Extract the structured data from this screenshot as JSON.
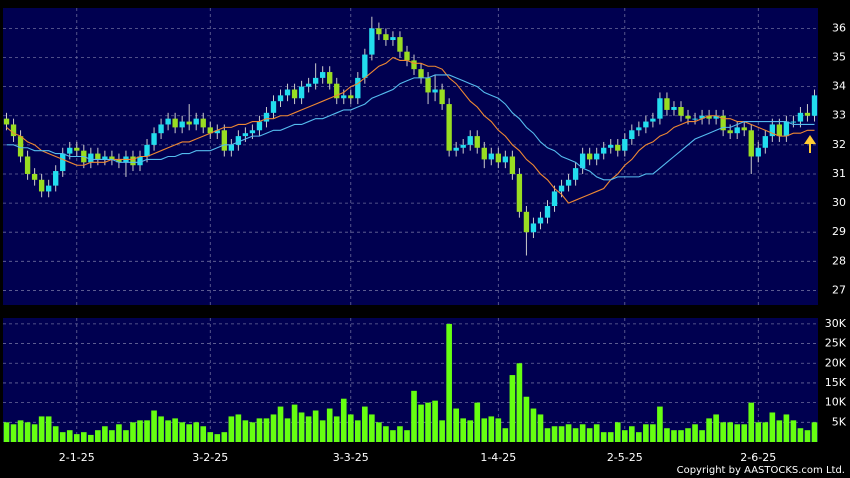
{
  "chart_data": [
    {
      "type": "candlestick",
      "categories": [
        null,
        null,
        null,
        null,
        null,
        null,
        null,
        null,
        null,
        null,
        "2-1-25",
        null,
        null,
        null,
        null,
        null,
        null,
        null,
        null,
        null,
        null,
        null,
        null,
        null,
        null,
        null,
        null,
        null,
        null,
        "3-2-25",
        null,
        null,
        null,
        null,
        null,
        null,
        null,
        null,
        null,
        null,
        null,
        null,
        null,
        null,
        null,
        null,
        null,
        null,
        null,
        "3-3-25",
        null,
        null,
        null,
        null,
        null,
        null,
        null,
        null,
        null,
        null,
        null,
        null,
        null,
        null,
        null,
        null,
        null,
        null,
        null,
        null,
        "1-4-25",
        null,
        null,
        null,
        null,
        null,
        null,
        null,
        null,
        null,
        null,
        null,
        null,
        null,
        null,
        null,
        null,
        null,
        "2-5-25",
        null,
        null,
        null,
        null,
        null,
        null,
        null,
        null,
        null,
        null,
        null,
        null,
        null,
        null,
        null,
        null,
        null,
        null,
        "2-6-25",
        null,
        null,
        null,
        null,
        null,
        null,
        null,
        null
      ],
      "open": [
        32.9,
        32.7,
        32.3,
        31.6,
        31.0,
        30.8,
        30.4,
        30.6,
        31.1,
        31.7,
        31.9,
        31.8,
        31.4,
        31.7,
        31.5,
        31.6,
        31.5,
        31.4,
        31.6,
        31.3,
        31.6,
        32.0,
        32.4,
        32.7,
        32.9,
        32.6,
        32.8,
        32.7,
        32.9,
        32.6,
        32.4,
        32.5,
        31.8,
        32.0,
        32.3,
        32.4,
        32.5,
        32.8,
        33.1,
        33.5,
        33.7,
        33.9,
        33.6,
        34.0,
        34.1,
        34.3,
        34.5,
        34.1,
        33.6,
        33.7,
        33.6,
        34.3,
        35.1,
        36.0,
        35.8,
        35.6,
        35.7,
        35.2,
        34.9,
        34.6,
        34.3,
        33.8,
        33.9,
        33.4,
        31.8,
        31.9,
        32.0,
        32.3,
        31.9,
        31.5,
        31.7,
        31.4,
        31.6,
        31.0,
        29.7,
        29.0,
        29.3,
        29.5,
        29.9,
        30.4,
        30.6,
        30.8,
        31.2,
        31.7,
        31.5,
        31.7,
        31.9,
        32.0,
        31.8,
        32.2,
        32.5,
        32.6,
        32.8,
        32.9,
        33.6,
        33.2,
        33.3,
        33.0,
        32.9,
        32.9,
        33.0,
        32.9,
        33.0,
        32.5,
        32.4,
        32.6,
        32.5,
        31.6,
        31.9,
        32.3,
        32.7,
        32.3,
        32.8,
        32.8,
        33.1,
        33.0
      ],
      "high": [
        33.1,
        32.9,
        32.5,
        31.8,
        31.2,
        31.0,
        30.8,
        31.3,
        31.9,
        32.1,
        32.1,
        32.0,
        31.9,
        31.9,
        31.8,
        31.8,
        31.7,
        31.8,
        31.8,
        31.8,
        32.2,
        32.6,
        32.9,
        33.1,
        33.1,
        33.0,
        33.4,
        33.1,
        33.1,
        32.8,
        32.7,
        32.7,
        32.2,
        32.5,
        32.6,
        32.7,
        33.0,
        33.3,
        33.7,
        33.9,
        34.1,
        34.1,
        34.2,
        34.3,
        34.8,
        34.7,
        34.7,
        34.3,
        33.9,
        33.9,
        34.5,
        35.3,
        36.4,
        36.2,
        36.0,
        35.9,
        35.9,
        35.4,
        35.1,
        34.8,
        34.5,
        34.4,
        34.1,
        33.6,
        32.1,
        32.2,
        32.5,
        32.5,
        32.1,
        31.9,
        31.9,
        31.8,
        31.8,
        31.2,
        29.9,
        29.5,
        29.7,
        30.1,
        30.6,
        30.8,
        31.0,
        31.4,
        31.9,
        31.9,
        31.9,
        32.1,
        32.2,
        32.2,
        32.4,
        32.7,
        32.8,
        33.0,
        33.1,
        33.8,
        33.8,
        33.5,
        33.5,
        33.2,
        33.1,
        33.2,
        33.2,
        33.2,
        33.2,
        32.7,
        32.8,
        32.8,
        32.7,
        32.1,
        32.5,
        32.9,
        32.9,
        33.0,
        33.0,
        33.3,
        33.4,
        33.9
      ],
      "low": [
        32.5,
        32.1,
        31.4,
        30.8,
        30.6,
        30.2,
        30.2,
        30.4,
        30.9,
        31.5,
        31.6,
        31.2,
        31.2,
        31.3,
        31.3,
        31.3,
        31.2,
        30.9,
        31.1,
        31.1,
        31.4,
        31.8,
        32.2,
        32.5,
        32.4,
        32.4,
        32.5,
        32.5,
        32.4,
        32.2,
        32.2,
        31.6,
        31.6,
        31.8,
        32.1,
        32.2,
        32.3,
        32.6,
        32.9,
        33.3,
        33.5,
        33.4,
        33.4,
        33.8,
        33.9,
        34.1,
        33.9,
        33.4,
        33.4,
        33.4,
        33.4,
        34.1,
        34.9,
        35.6,
        35.4,
        35.4,
        35.0,
        34.7,
        34.4,
        34.1,
        33.4,
        33.5,
        33.2,
        31.6,
        31.6,
        31.7,
        31.8,
        31.7,
        31.2,
        31.3,
        31.2,
        31.2,
        30.8,
        29.5,
        28.2,
        28.8,
        29.1,
        29.3,
        29.7,
        30.2,
        30.4,
        30.6,
        31.0,
        31.3,
        31.3,
        31.5,
        31.7,
        31.6,
        31.6,
        32.0,
        32.3,
        32.4,
        32.6,
        32.7,
        33.0,
        33.0,
        32.8,
        32.7,
        32.7,
        32.7,
        32.7,
        32.7,
        32.3,
        32.2,
        32.2,
        32.3,
        31.0,
        31.4,
        31.7,
        32.1,
        32.1,
        32.1,
        32.6,
        32.6,
        32.8,
        32.8
      ],
      "close": [
        32.7,
        32.3,
        31.6,
        31.0,
        30.8,
        30.4,
        30.6,
        31.1,
        31.7,
        31.9,
        31.8,
        31.4,
        31.7,
        31.5,
        31.6,
        31.5,
        31.4,
        31.6,
        31.3,
        31.6,
        32.0,
        32.4,
        32.7,
        32.9,
        32.6,
        32.8,
        32.7,
        32.9,
        32.6,
        32.4,
        32.5,
        31.8,
        32.0,
        32.3,
        32.4,
        32.5,
        32.8,
        33.1,
        33.5,
        33.7,
        33.9,
        33.6,
        34.0,
        34.1,
        34.3,
        34.5,
        34.1,
        33.6,
        33.7,
        33.6,
        34.3,
        35.1,
        36.0,
        35.8,
        35.6,
        35.7,
        35.2,
        34.9,
        34.6,
        34.3,
        33.8,
        33.9,
        33.4,
        31.8,
        31.9,
        32.0,
        32.3,
        31.9,
        31.5,
        31.7,
        31.4,
        31.6,
        31.0,
        29.7,
        29.0,
        29.3,
        29.5,
        29.9,
        30.4,
        30.6,
        30.8,
        31.2,
        31.7,
        31.5,
        31.7,
        31.9,
        32.0,
        31.8,
        32.2,
        32.5,
        32.6,
        32.8,
        32.9,
        33.6,
        33.2,
        33.3,
        33.0,
        32.9,
        32.9,
        33.0,
        32.9,
        33.0,
        32.5,
        32.4,
        32.6,
        32.5,
        31.6,
        31.9,
        32.3,
        32.7,
        32.3,
        32.8,
        32.8,
        33.1,
        33.0,
        33.7
      ],
      "up_color": "#22ddee",
      "down_color": "#99dd22",
      "series": [
        {
          "color": "#ee8833",
          "values": [
            32.6,
            32.4,
            32.3,
            32.1,
            32.0,
            31.8,
            31.7,
            31.6,
            31.5,
            31.4,
            31.3,
            31.3,
            31.4,
            31.4,
            31.4,
            31.5,
            31.5,
            31.5,
            31.5,
            31.6,
            31.6,
            31.7,
            31.8,
            31.9,
            32.0,
            32.1,
            32.1,
            32.2,
            32.3,
            32.4,
            32.5,
            32.6,
            32.6,
            32.7,
            32.7,
            32.8,
            32.8,
            32.9,
            32.9,
            33.0,
            33.0,
            33.1,
            33.2,
            33.3,
            33.4,
            33.5,
            33.6,
            33.7,
            33.8,
            34.0,
            34.1,
            34.3,
            34.5,
            34.7,
            34.8,
            35.0,
            34.9,
            34.9,
            34.8,
            34.8,
            34.7,
            34.7,
            34.6,
            34.3,
            34.1,
            33.8,
            33.5,
            33.3,
            33.0,
            32.8,
            32.5,
            32.3,
            32.0,
            31.8,
            31.5,
            31.3,
            31.0,
            30.8,
            30.5,
            30.3,
            30.0,
            30.1,
            30.2,
            30.3,
            30.4,
            30.5,
            30.8,
            31.0,
            31.3,
            31.5,
            31.8,
            32.0,
            32.1,
            32.3,
            32.4,
            32.6,
            32.7,
            32.8,
            32.8,
            32.9,
            33.0,
            33.0,
            32.9,
            32.9,
            32.8,
            32.8,
            32.7,
            32.6,
            32.5,
            32.4,
            32.3,
            32.3,
            32.4,
            32.4,
            32.5,
            32.5
          ]
        },
        {
          "color": "#55bbee",
          "values": [
            32.0,
            32.0,
            31.9,
            31.9,
            31.8,
            31.8,
            31.8,
            31.7,
            31.7,
            31.6,
            31.6,
            31.6,
            31.5,
            31.5,
            31.5,
            31.5,
            31.4,
            31.4,
            31.4,
            31.4,
            31.5,
            31.5,
            31.5,
            31.6,
            31.6,
            31.7,
            31.7,
            31.8,
            31.8,
            31.8,
            31.9,
            32.0,
            32.0,
            32.1,
            32.2,
            32.3,
            32.3,
            32.4,
            32.5,
            32.5,
            32.6,
            32.7,
            32.7,
            32.8,
            32.9,
            32.9,
            33.0,
            33.1,
            33.2,
            33.2,
            33.3,
            33.4,
            33.6,
            33.7,
            33.8,
            33.9,
            34.1,
            34.2,
            34.3,
            34.3,
            34.3,
            34.4,
            34.4,
            34.4,
            34.3,
            34.2,
            34.1,
            34.0,
            33.8,
            33.7,
            33.6,
            33.4,
            33.1,
            32.9,
            32.6,
            32.4,
            32.1,
            31.9,
            31.8,
            31.6,
            31.5,
            31.4,
            31.2,
            31.1,
            30.9,
            30.8,
            30.8,
            30.9,
            30.9,
            30.9,
            30.9,
            31.0,
            31.0,
            31.2,
            31.4,
            31.6,
            31.8,
            32.0,
            32.2,
            32.3,
            32.4,
            32.5,
            32.6,
            32.6,
            32.7,
            32.8,
            32.8,
            32.8,
            32.8,
            32.8,
            32.8,
            32.8,
            32.7,
            32.7,
            32.7,
            32.7
          ]
        }
      ],
      "ylim": [
        26.5,
        36.7
      ],
      "yticks": [
        27,
        28,
        29,
        30,
        31,
        32,
        33,
        34,
        35,
        36
      ],
      "grid": true
    },
    {
      "type": "bar",
      "values": [
        5000,
        4500,
        5500,
        5000,
        4500,
        6500,
        6500,
        4000,
        2500,
        3000,
        2000,
        2500,
        1800,
        3000,
        4000,
        3000,
        4500,
        3000,
        5000,
        5500,
        5500,
        8000,
        6500,
        5500,
        6000,
        5000,
        4500,
        5000,
        4000,
        2500,
        2000,
        2500,
        6500,
        7000,
        5500,
        5000,
        6000,
        6000,
        7000,
        9000,
        6000,
        9500,
        7500,
        6500,
        8000,
        5500,
        8500,
        6500,
        11000,
        7000,
        5500,
        9000,
        7000,
        5000,
        4000,
        3000,
        4000,
        3000,
        13000,
        9500,
        10000,
        10500,
        5500,
        30000,
        8500,
        6000,
        5500,
        10000,
        6000,
        6500,
        6000,
        3500,
        17000,
        20000,
        11500,
        8500,
        7000,
        3500,
        4000,
        4000,
        4500,
        3500,
        4500,
        3500,
        4500,
        2500,
        2500,
        5000,
        3000,
        4000,
        2500,
        4500,
        4500,
        9000,
        3500,
        3000,
        3000,
        3500,
        4500,
        3000,
        6000,
        7000,
        5000,
        5000,
        4500,
        4500,
        10000,
        5000,
        5000,
        7500,
        5500,
        7000,
        5500,
        3500,
        3000,
        5000
      ],
      "color": "#66ff11",
      "ylim": [
        0,
        31500
      ],
      "yticks": [
        {
          "value": 5000,
          "label": "5K"
        },
        {
          "value": 10000,
          "label": "10K"
        },
        {
          "value": 15000,
          "label": "15K"
        },
        {
          "value": 20000,
          "label": "20K"
        },
        {
          "value": 25000,
          "label": "25K"
        },
        {
          "value": 30000,
          "label": "30K"
        }
      ],
      "grid": true
    }
  ],
  "copyright": "Copyright by AASTOCKS.com Ltd."
}
